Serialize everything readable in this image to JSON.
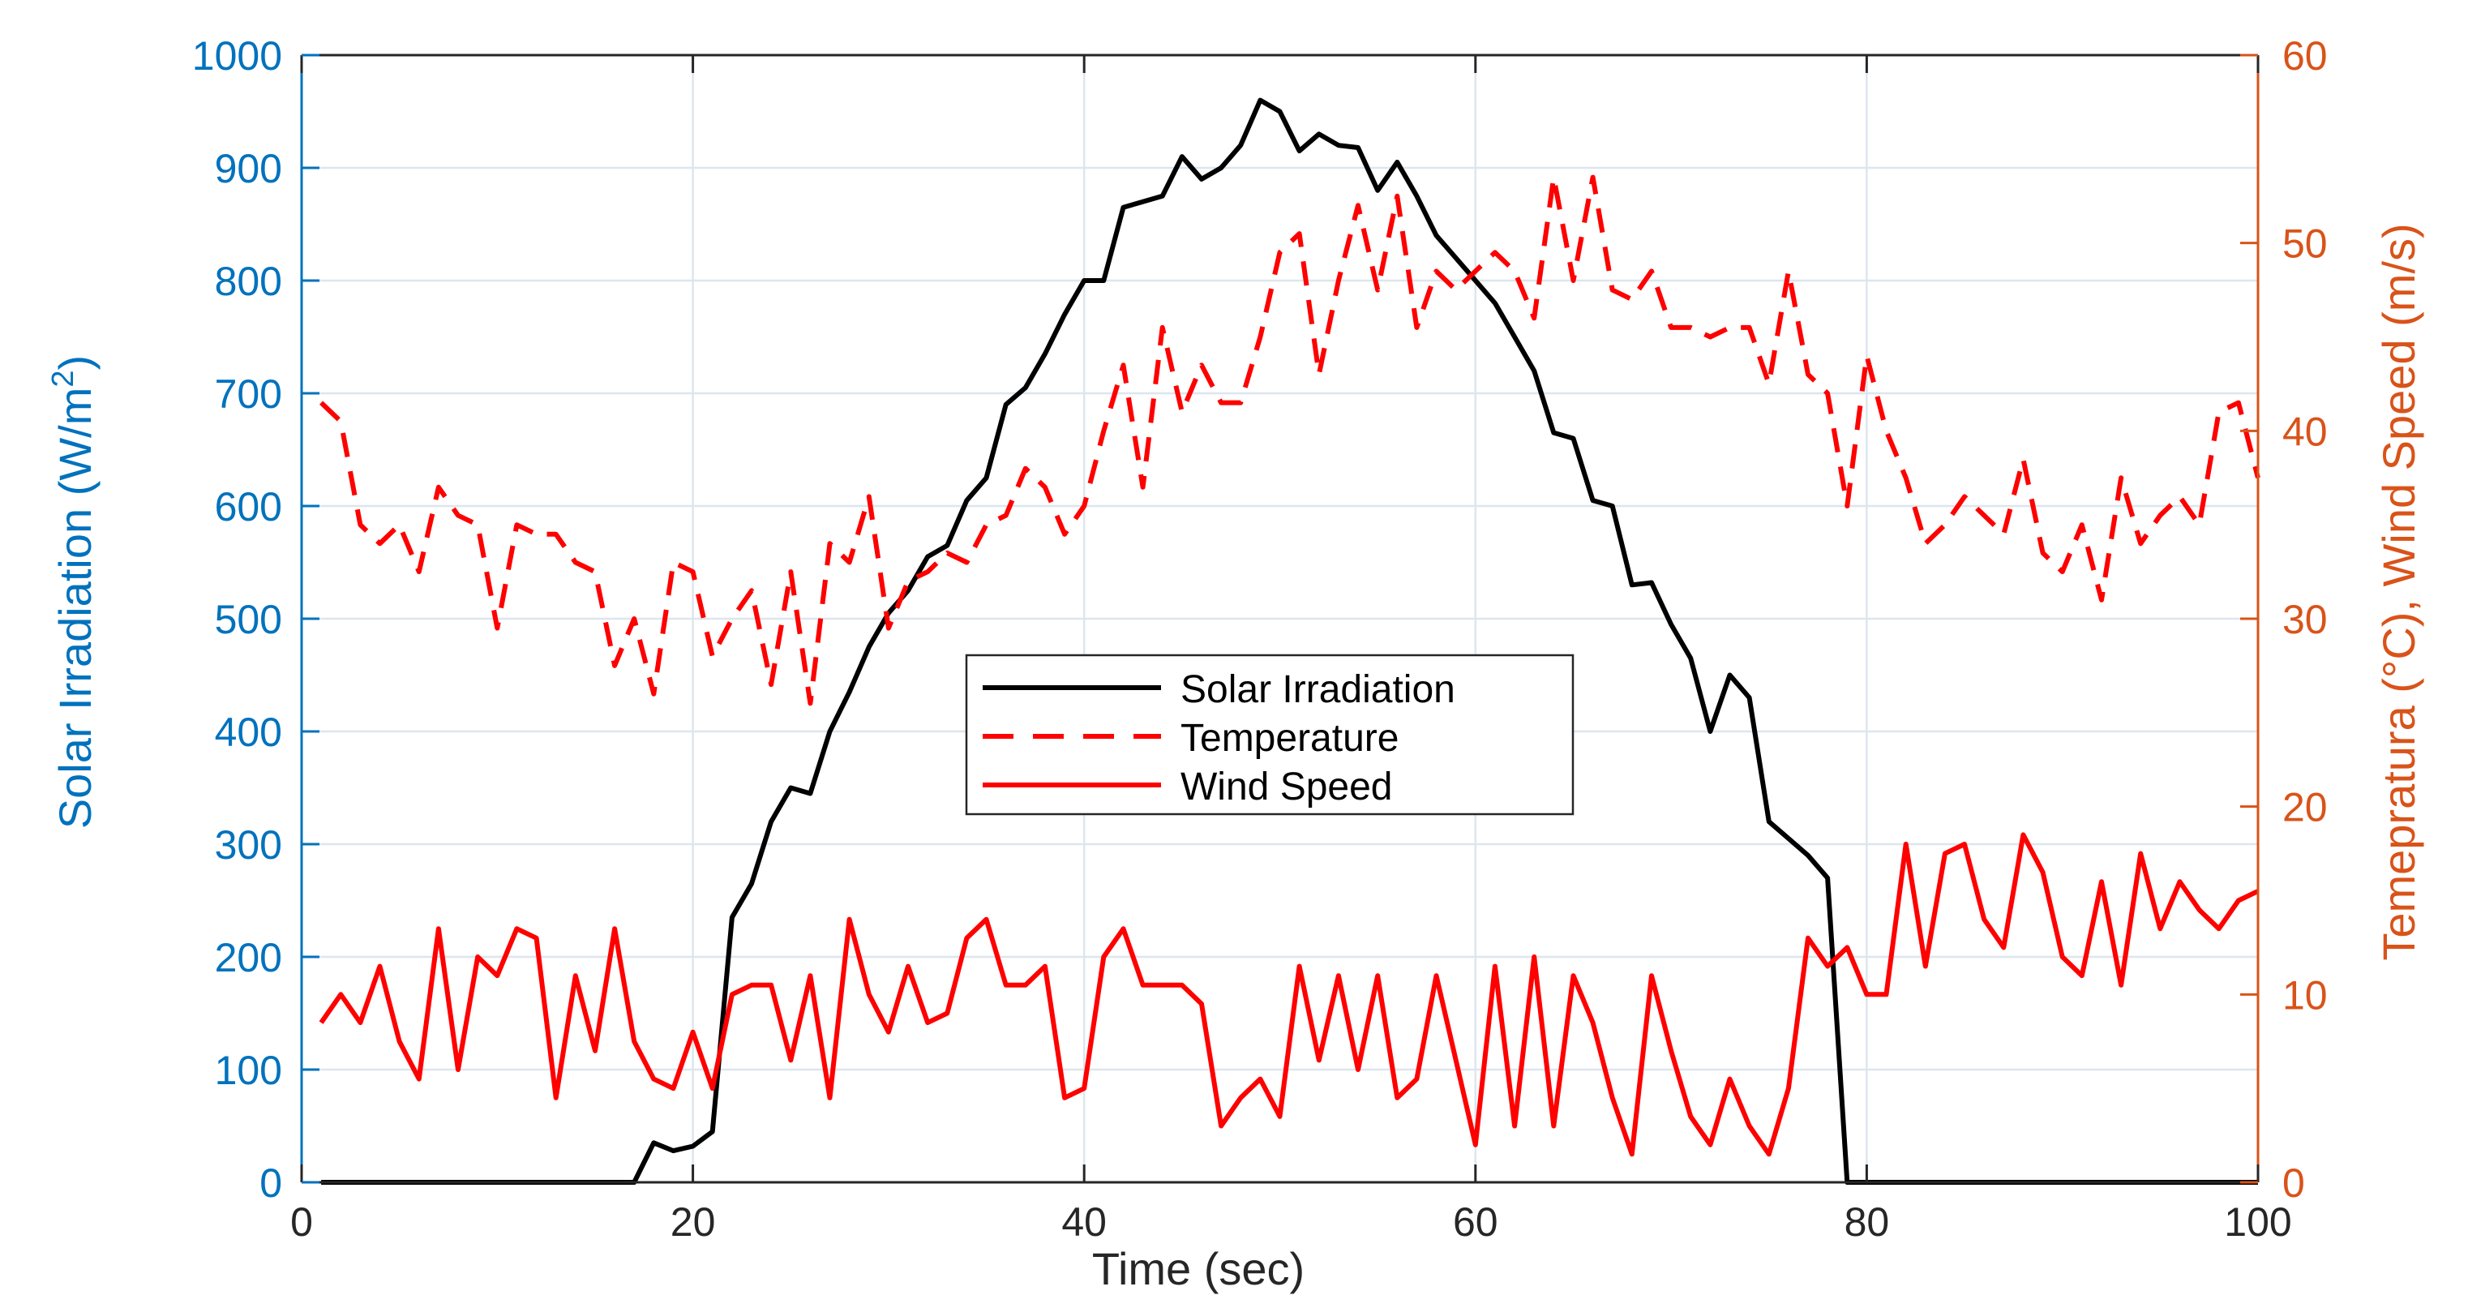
{
  "chart_data": {
    "type": "line",
    "xlabel": "Time (sec)",
    "ylabel_left": "Solar Irradiation (W/m",
    "ylabel_left_sup": "2",
    "ylabel_left_close": ")",
    "ylabel_right": "Temepratura (°C), Wind Speed (m/s)",
    "xlim": [
      0,
      100
    ],
    "ylim_left": [
      0,
      1000
    ],
    "ylim_right": [
      0,
      60
    ],
    "grid": true,
    "legend_position": "center",
    "x_ticks": [
      0,
      20,
      40,
      60,
      80,
      100
    ],
    "x_tick_labels": [
      "0",
      "20",
      "40",
      "60",
      "80",
      "100"
    ],
    "y_left_ticks": [
      0,
      100,
      200,
      300,
      400,
      500,
      600,
      700,
      800,
      900,
      1000
    ],
    "y_left_tick_labels": [
      "0",
      "100",
      "200",
      "300",
      "400",
      "500",
      "600",
      "700",
      "800",
      "900",
      "1000"
    ],
    "y_right_ticks": [
      0,
      10,
      20,
      30,
      40,
      50,
      60
    ],
    "y_right_tick_labels": [
      "0",
      "10",
      "20",
      "30",
      "40",
      "50",
      "60"
    ],
    "colors": {
      "left_axis": "#0072BD",
      "right_axis": "#D95319",
      "grid": "#dde6ee",
      "solar": "#000000",
      "temperature": "#ff0000",
      "wind": "#ff0000"
    },
    "series": [
      {
        "name": "Solar Irradiation",
        "axis": "left",
        "style": "solid",
        "x": [
          1,
          16,
          17,
          18,
          19,
          20,
          21,
          22,
          23,
          24,
          25,
          26,
          27,
          28,
          29,
          30,
          31,
          32,
          33,
          34,
          35,
          36,
          37,
          38,
          39,
          40,
          41,
          42,
          43,
          44,
          45,
          46,
          47,
          48,
          49,
          50,
          51,
          52,
          53,
          54,
          55,
          56,
          57,
          58,
          59,
          60,
          61,
          62,
          63,
          64,
          65,
          66,
          67,
          68,
          69,
          70,
          71,
          72,
          73,
          74,
          75,
          76,
          77,
          78,
          79,
          100
        ],
        "y": [
          0,
          0,
          0,
          35,
          28,
          32,
          45,
          235,
          265,
          320,
          350,
          345,
          400,
          435,
          475,
          505,
          525,
          555,
          565,
          605,
          625,
          690,
          705,
          735,
          770,
          800,
          800,
          865,
          870,
          875,
          910,
          890,
          900,
          920,
          960,
          950,
          915,
          930,
          920,
          918,
          880,
          905,
          875,
          840,
          820,
          800,
          780,
          750,
          720,
          665,
          660,
          605,
          600,
          530,
          532,
          495,
          465,
          400,
          450,
          430,
          320,
          305,
          290,
          270,
          0,
          0
        ]
      },
      {
        "name": "Temperature",
        "axis": "right",
        "style": "dashed",
        "x": [
          1,
          2,
          3,
          4,
          5,
          6,
          7,
          8,
          9,
          10,
          11,
          12,
          13,
          14,
          15,
          16,
          17,
          18,
          19,
          20,
          21,
          22,
          23,
          24,
          25,
          26,
          27,
          28,
          29,
          30,
          31,
          32,
          33,
          34,
          35,
          36,
          37,
          38,
          39,
          40,
          41,
          42,
          43,
          44,
          45,
          46,
          47,
          48,
          49,
          50,
          51,
          52,
          53,
          54,
          55,
          56,
          57,
          58,
          59,
          60,
          61,
          62,
          63,
          64,
          65,
          66,
          67,
          68,
          69,
          70,
          71,
          72,
          73,
          74,
          75,
          76,
          77,
          78,
          79,
          80,
          81,
          82,
          83,
          84,
          85,
          86,
          87,
          88,
          89,
          90,
          91,
          92,
          93,
          94,
          95,
          96,
          97,
          98,
          99,
          100
        ],
        "y": [
          41.5,
          40.5,
          35,
          34,
          35,
          32.5,
          37,
          35.5,
          35,
          29.5,
          35,
          34.5,
          34.5,
          33,
          32.5,
          27.5,
          30,
          26,
          33,
          32.5,
          28,
          30,
          31.5,
          26.5,
          32.5,
          25.5,
          34,
          33,
          36.5,
          29.5,
          32,
          32.5,
          33.5,
          33,
          35,
          35.5,
          38,
          37,
          34.5,
          36,
          40,
          43.5,
          37,
          45.5,
          41,
          43.5,
          41.5,
          41.5,
          45,
          49.5,
          50.5,
          43,
          48,
          52,
          47.5,
          52.5,
          45.5,
          48.5,
          47.5,
          48.5,
          49.5,
          48.5,
          46,
          53.5,
          48,
          53.5,
          47.5,
          47,
          48.5,
          45.5,
          45.5,
          45,
          45.5,
          45.5,
          42.5,
          48.5,
          43,
          42,
          36,
          44,
          40,
          37.5,
          34,
          35,
          36.5,
          35.5,
          34.5,
          38.5,
          33.5,
          32.5,
          35,
          31,
          37.5,
          34,
          35.5,
          36.5,
          35,
          41,
          41.5,
          37.5
        ]
      },
      {
        "name": "Wind Speed",
        "axis": "right",
        "style": "solid",
        "x": [
          1,
          2,
          3,
          4,
          5,
          6,
          7,
          8,
          9,
          10,
          11,
          12,
          13,
          14,
          15,
          16,
          17,
          18,
          19,
          20,
          21,
          22,
          23,
          24,
          25,
          26,
          27,
          28,
          29,
          30,
          31,
          32,
          33,
          34,
          35,
          36,
          37,
          38,
          39,
          40,
          41,
          42,
          43,
          44,
          45,
          46,
          47,
          48,
          49,
          50,
          51,
          52,
          53,
          54,
          55,
          56,
          57,
          58,
          59,
          60,
          61,
          62,
          63,
          64,
          65,
          66,
          67,
          68,
          69,
          70,
          71,
          72,
          73,
          74,
          75,
          76,
          77,
          78,
          79,
          80,
          81,
          82,
          83,
          84,
          85,
          86,
          87,
          88,
          89,
          90,
          91,
          92,
          93,
          94,
          95,
          96,
          97,
          98,
          99,
          100
        ],
        "y": [
          8.5,
          10,
          8.5,
          11.5,
          7.5,
          5.5,
          13.5,
          6,
          12,
          11,
          13.5,
          13,
          4.5,
          11,
          7,
          13.5,
          7.5,
          5.5,
          5,
          8,
          5,
          10,
          10.5,
          10.5,
          6.5,
          11,
          4.5,
          14,
          10,
          8,
          11.5,
          8.5,
          9,
          13,
          14,
          10.5,
          10.5,
          11.5,
          4.5,
          5,
          12,
          13.5,
          10.5,
          10.5,
          10.5,
          9.5,
          3,
          4.5,
          5.5,
          3.5,
          11.5,
          6.5,
          11,
          6,
          11,
          4.5,
          5.5,
          11,
          6.5,
          2,
          11.5,
          3,
          12,
          3,
          11,
          8.5,
          4.5,
          1.5,
          11,
          7,
          3.5,
          2,
          5.5,
          3,
          1.5,
          5,
          13,
          11.5,
          12.5,
          10,
          10,
          18,
          11.5,
          17.5,
          18,
          14,
          12.5,
          18.5,
          16.5,
          12,
          11,
          16,
          10.5,
          17.5,
          13.5,
          16,
          14.5,
          13.5,
          15,
          15.5
        ]
      }
    ],
    "legend": {
      "entries": [
        "Solar Irradiation",
        "Temperature",
        "Wind Speed"
      ]
    }
  }
}
